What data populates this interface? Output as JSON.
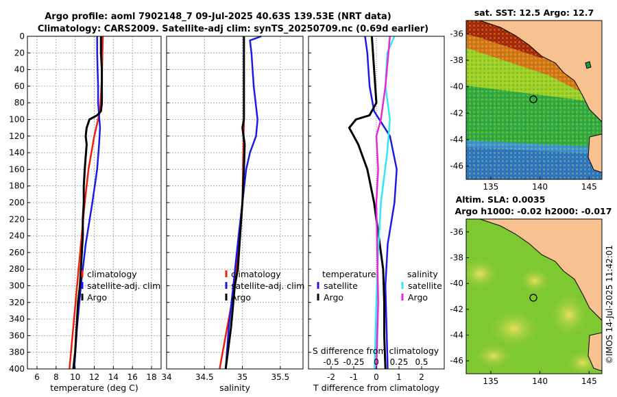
{
  "header": {
    "line1": "Argo profile: aoml 7902148_7 09-Jul-2025 40.63S 139.53E (NRT data)",
    "line2": "Climatology: CARS2009. Satellite-adj clim: synTS_20250709.nc (0.69d earlier)"
  },
  "colors": {
    "climatology": "#e8200c",
    "satellite": "#1a1ae6",
    "argo": "#000000",
    "sat_salinity": "#33e6f0",
    "argo_salinity": "#e628d8",
    "land": "#f7c28f",
    "sst_warm": "#b01a08",
    "sst_cool": "#2a7fd6",
    "sla_main": "#7ec832"
  },
  "chart_data": [
    {
      "type": "line",
      "id": "temperature-profile",
      "xlabel": "temperature (deg C)",
      "ylabel": "",
      "xlim": [
        5,
        19
      ],
      "ylim": [
        400,
        0
      ],
      "xticks": [
        "6",
        "8",
        "10",
        "12",
        "14",
        "16",
        "18"
      ],
      "yticks": [
        "0",
        "20",
        "40",
        "60",
        "80",
        "100",
        "120",
        "140",
        "160",
        "180",
        "200",
        "220",
        "240",
        "260",
        "280",
        "300",
        "320",
        "340",
        "360",
        "380",
        "400"
      ],
      "grid": true,
      "legend": [
        "climatology",
        "satellite-adj. clim",
        "Argo"
      ],
      "series": [
        {
          "name": "climatology",
          "depth": [
            0,
            50,
            90,
            100,
            120,
            160,
            200,
            250,
            300,
            350,
            400
          ],
          "values": [
            12.9,
            12.8,
            12.6,
            12.4,
            12.0,
            11.4,
            11.0,
            10.6,
            10.2,
            9.8,
            9.4
          ]
        },
        {
          "name": "satellite-adj. clim",
          "depth": [
            0,
            20,
            60,
            80,
            95,
            110,
            130,
            160,
            200,
            250,
            300,
            350,
            400
          ],
          "values": [
            12.3,
            12.3,
            12.4,
            12.4,
            12.5,
            12.6,
            12.5,
            12.3,
            11.8,
            11.1,
            10.6,
            10.2,
            9.9
          ]
        },
        {
          "name": "Argo",
          "depth": [
            0,
            20,
            40,
            60,
            80,
            90,
            95,
            100,
            110,
            120,
            130,
            145,
            160,
            180,
            200,
            220,
            240,
            260,
            280,
            300,
            320,
            340,
            360,
            380,
            400
          ],
          "values": [
            12.7,
            12.7,
            12.8,
            12.8,
            12.8,
            12.7,
            12.3,
            11.5,
            11.2,
            11.1,
            11.2,
            11.1,
            11.0,
            10.9,
            10.9,
            10.8,
            10.8,
            10.7,
            10.6,
            10.5,
            10.3,
            10.2,
            10.1,
            10.0,
            9.8
          ]
        }
      ]
    },
    {
      "type": "line",
      "id": "salinity-profile",
      "xlabel": "salinity",
      "xlim": [
        34,
        35.8
      ],
      "ylim": [
        400,
        0
      ],
      "xticks": [
        "34",
        "34.5",
        "35",
        "35.5"
      ],
      "grid": true,
      "legend": [
        "climatology",
        "satellite-adj. clim",
        "Argo"
      ],
      "series": [
        {
          "name": "climatology",
          "depth": [
            0,
            100,
            200,
            250,
            300,
            350,
            400
          ],
          "values": [
            35.02,
            35.02,
            35.0,
            34.95,
            34.9,
            34.8,
            34.7
          ]
        },
        {
          "name": "satellite-adj. clim",
          "depth": [
            0,
            5,
            20,
            60,
            100,
            120,
            140,
            160,
            200,
            240,
            300,
            350,
            400
          ],
          "values": [
            35.25,
            35.1,
            35.12,
            35.15,
            35.2,
            35.18,
            35.1,
            35.05,
            35.0,
            34.95,
            34.88,
            34.82,
            34.78
          ]
        },
        {
          "name": "Argo",
          "depth": [
            0,
            50,
            100,
            110,
            130,
            160,
            200,
            240,
            280,
            300,
            350,
            400
          ],
          "values": [
            35.02,
            35.02,
            35.02,
            35.0,
            35.03,
            35.02,
            35.0,
            34.97,
            34.94,
            34.9,
            34.85,
            34.78
          ]
        }
      ]
    },
    {
      "type": "line",
      "id": "difference-profile",
      "xlabel": "T difference from climatology",
      "xlabel_top": "S difference from climatology",
      "xlim": [
        -3,
        3
      ],
      "ylim": [
        400,
        0
      ],
      "xticks": [
        "-2",
        "-1",
        "0",
        "1",
        "2"
      ],
      "xticks_top": [
        "-0.5",
        "-0.25",
        "0",
        "0.25",
        "0.5"
      ],
      "grid": false,
      "legend_groups": [
        {
          "title": "temperature",
          "items": [
            "satellite",
            "Argo"
          ]
        },
        {
          "title": "salinity",
          "items": [
            "satellite",
            "Argo"
          ]
        }
      ],
      "series": [
        {
          "name": "temperature satellite",
          "depth": [
            0,
            20,
            60,
            90,
            120,
            160,
            200,
            250,
            300,
            400
          ],
          "values": [
            -0.5,
            -0.4,
            -0.3,
            -0.1,
            0.6,
            0.9,
            0.8,
            0.5,
            0.4,
            0.5
          ]
        },
        {
          "name": "temperature Argo",
          "depth": [
            0,
            40,
            80,
            95,
            100,
            110,
            120,
            130,
            160,
            200,
            240,
            280,
            320,
            360,
            400
          ],
          "values": [
            -0.2,
            -0.1,
            0.0,
            -0.3,
            -0.9,
            -1.2,
            -1.0,
            -0.8,
            -0.4,
            -0.1,
            0.1,
            0.3,
            0.35,
            0.35,
            0.4
          ]
        },
        {
          "name": "salinity satellite",
          "depth": [
            0,
            20,
            60,
            100,
            140,
            200,
            260,
            320,
            400
          ],
          "values": [
            0.2,
            0.12,
            0.1,
            0.15,
            0.12,
            0.05,
            0.02,
            0.0,
            -0.02
          ]
        },
        {
          "name": "salinity Argo",
          "depth": [
            0,
            60,
            100,
            120,
            160,
            200,
            260,
            320,
            400
          ],
          "values": [
            0.15,
            0.1,
            0.05,
            0.0,
            0.02,
            0.0,
            0.01,
            0.02,
            0.0
          ]
        }
      ]
    },
    {
      "type": "heatmap",
      "id": "sst-map",
      "title": "sat. SST: 12.5 Argo: 12.7",
      "xticks": [
        "135",
        "140",
        "145"
      ],
      "yticks": [
        "-36",
        "-38",
        "-40",
        "-42",
        "-44",
        "-46"
      ],
      "xlim": [
        132.5,
        146.3
      ],
      "ylim": [
        -47,
        -35
      ]
    },
    {
      "type": "heatmap",
      "id": "sla-map",
      "title": "Altim. SLA: 0.0035",
      "subtitle": "Argo h1000: -0.02 h2000: -0.017",
      "xticks": [
        "135",
        "140",
        "145"
      ],
      "yticks": [
        "-36",
        "-38",
        "-40",
        "-42",
        "-44",
        "-46"
      ],
      "xlim": [
        132.5,
        146.3
      ],
      "ylim": [
        -47,
        -35
      ]
    }
  ],
  "footer": {
    "credit": "©IMOS 14-Jul-2025 11:42:01"
  }
}
